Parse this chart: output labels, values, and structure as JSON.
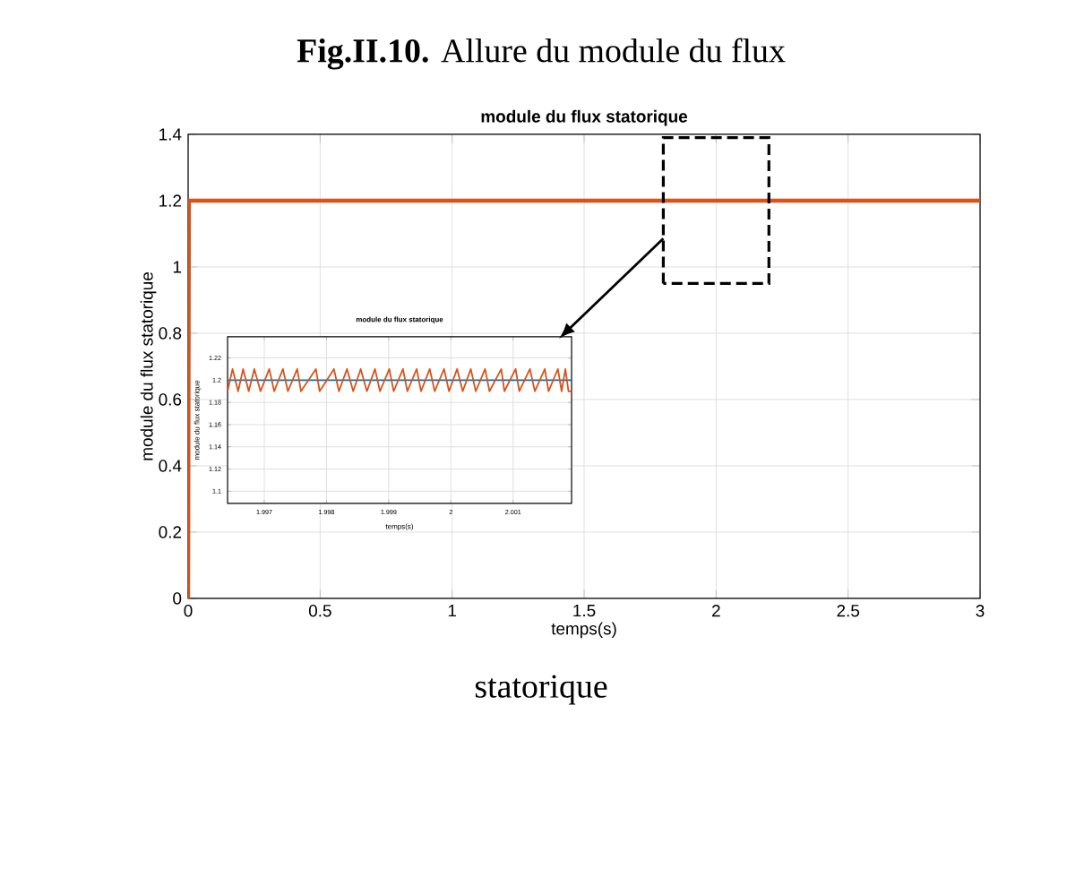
{
  "chart_data": [
    {
      "type": "line",
      "title": "module du flux statorique",
      "xlabel": "temps(s)",
      "ylabel": "module du flux statorique",
      "x": [
        0,
        0.003,
        3
      ],
      "series": [
        {
          "color": "#d95319",
          "values": [
            0,
            1.2,
            1.2
          ]
        }
      ],
      "xlim": [
        0,
        3
      ],
      "ylim": [
        0,
        1.4
      ],
      "xticks": [
        0,
        0.5,
        1,
        1.5,
        2,
        2.5,
        3
      ],
      "yticks": [
        0,
        0.2,
        0.4,
        0.6,
        0.8,
        1,
        1.2,
        1.4
      ],
      "grid": true,
      "annotations": [
        "**Fig.II.10.** Allure du module du flux",
        "statorique"
      ]
    },
    {
      "type": "line",
      "title": "module du flux statorique",
      "xlabel": "temps(s)",
      "ylabel": "module du flux statorique",
      "series": [
        {
          "color": "#0072bd",
          "x": [
            1.99641,
            2.00194
          ],
          "values": [
            1.2,
            1.2
          ]
        },
        {
          "color": "#d95319",
          "x": [
            1.99641,
            1.99649,
            1.99658,
            1.99666,
            1.99675,
            1.99684,
            1.99694,
            1.99708,
            1.99716,
            1.9973,
            1.99738,
            1.99753,
            1.99759,
            1.99783,
            1.99789,
            1.99812,
            1.9982,
            1.99833,
            1.99843,
            1.99855,
            1.99865,
            1.99878,
            1.99886,
            1.99901,
            1.99908,
            1.99923,
            1.9993,
            1.99945,
            1.99952,
            1.99966,
            1.99974,
            1.99989,
            1.99997,
            2.0001,
            2.00019,
            2.00032,
            2.0004,
            2.00055,
            2.00062,
            2.00081,
            2.00086,
            2.00104,
            2.0011,
            2.00127,
            2.00135,
            2.00151,
            2.00157,
            2.00172,
            2.00178,
            2.00184,
            2.00189,
            2.00194
          ],
          "values": [
            1.19,
            1.21,
            1.19,
            1.21,
            1.19,
            1.21,
            1.19,
            1.21,
            1.19,
            1.21,
            1.19,
            1.21,
            1.19,
            1.21,
            1.19,
            1.21,
            1.19,
            1.21,
            1.19,
            1.21,
            1.19,
            1.21,
            1.19,
            1.21,
            1.19,
            1.21,
            1.19,
            1.21,
            1.19,
            1.21,
            1.19,
            1.21,
            1.19,
            1.21,
            1.19,
            1.21,
            1.19,
            1.21,
            1.19,
            1.21,
            1.19,
            1.21,
            1.19,
            1.21,
            1.19,
            1.21,
            1.19,
            1.21,
            1.19,
            1.21,
            1.19,
            1.19
          ]
        }
      ],
      "xlim": [
        1.99641,
        2.00194
      ],
      "ylim": [
        1.089,
        1.239
      ],
      "xticks": [
        1.997,
        1.998,
        1.999,
        2,
        2.001
      ],
      "yticks": [
        1.1,
        1.12,
        1.14,
        1.16,
        1.18,
        1.2,
        1.22
      ],
      "grid": true
    }
  ]
}
